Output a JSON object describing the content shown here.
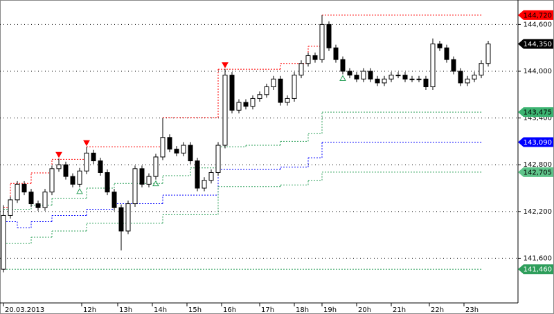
{
  "chart_data": {
    "type": "candlestick",
    "xlim": [
      -0.5,
      74.3
    ],
    "ylim": [
      141027,
      144914
    ],
    "xticks": [
      {
        "value": 0,
        "label": "20.03.2013"
      },
      {
        "value": 11.3,
        "label": "12h"
      },
      {
        "value": 16.5,
        "label": "13h"
      },
      {
        "value": 21.5,
        "label": "14h"
      },
      {
        "value": 26.5,
        "label": "15h"
      },
      {
        "value": 31.5,
        "label": "16h"
      },
      {
        "value": 37,
        "label": "17h"
      },
      {
        "value": 42,
        "label": "18h"
      },
      {
        "value": 46,
        "label": "19h"
      },
      {
        "value": 51,
        "label": "20h"
      },
      {
        "value": 56,
        "label": "21h"
      },
      {
        "value": 61.5,
        "label": "22h"
      },
      {
        "value": 66.5,
        "label": "23h"
      }
    ],
    "yticks": [
      {
        "value": 141600,
        "label": "141,600"
      },
      {
        "value": 142200,
        "label": "142,200"
      },
      {
        "value": 142800,
        "label": "142,800"
      },
      {
        "value": 143400,
        "label": "143,400"
      },
      {
        "value": 144000,
        "label": "144,000"
      },
      {
        "value": 144600,
        "label": "144,600"
      }
    ],
    "grid": true,
    "up_color": "#ffffff",
    "down_color": "#000000",
    "open": [
      141460,
      142150,
      142350,
      142550,
      142450,
      142300,
      142250,
      142450,
      142750,
      142800,
      142650,
      142550,
      142720,
      142950,
      142850,
      142700,
      142450,
      142250,
      141950,
      142300,
      142750,
      142550,
      142650,
      142900,
      143150,
      143000,
      142950,
      143050,
      142850,
      142500,
      142600,
      142700,
      143050,
      143950,
      143500,
      143600,
      143550,
      143650,
      143700,
      143800,
      143900,
      143600,
      143650,
      143950,
      144100,
      144200,
      144150,
      144600,
      144300,
      144150,
      144000,
      143950,
      143900,
      144000,
      143900,
      143850,
      143900,
      143950,
      143950,
      143900,
      143900,
      143900,
      143800,
      144350,
      144300,
      144150,
      144000,
      143850,
      143900,
      143950,
      144100
    ],
    "high": [
      142280,
      142390,
      142590,
      142590,
      142490,
      142340,
      142490,
      142790,
      142880,
      142840,
      142690,
      142760,
      143030,
      142990,
      142890,
      142740,
      142490,
      142290,
      142340,
      142790,
      142790,
      142690,
      142940,
      143400,
      143190,
      143040,
      143090,
      143090,
      142890,
      142640,
      142740,
      143090,
      144030,
      143990,
      143640,
      143640,
      143690,
      143740,
      143840,
      143940,
      143940,
      143690,
      143990,
      144140,
      144240,
      144240,
      144720,
      144640,
      144340,
      144190,
      144040,
      143990,
      144040,
      144040,
      143940,
      143940,
      143990,
      143990,
      143990,
      143940,
      143940,
      143940,
      144420,
      144390,
      144340,
      144190,
      144040,
      143940,
      143990,
      144140,
      144390
    ],
    "low": [
      141420,
      142110,
      142310,
      142410,
      142260,
      142210,
      142210,
      142410,
      142710,
      142610,
      142510,
      142510,
      142680,
      142810,
      142660,
      142410,
      142210,
      141700,
      141910,
      142260,
      142510,
      142510,
      142610,
      142860,
      142960,
      142910,
      142910,
      142810,
      142460,
      142460,
      142560,
      142660,
      143010,
      143460,
      143460,
      143510,
      143510,
      143610,
      143660,
      143760,
      143560,
      143560,
      143610,
      143910,
      144060,
      144110,
      144110,
      144260,
      144110,
      143960,
      143910,
      143860,
      143860,
      143860,
      143810,
      143810,
      143860,
      143910,
      143860,
      143860,
      143860,
      143760,
      143760,
      144260,
      144110,
      143960,
      143810,
      143810,
      143860,
      143910,
      144060
    ],
    "close": [
      142150,
      142350,
      142550,
      142450,
      142300,
      142250,
      142450,
      142750,
      142800,
      142650,
      142550,
      142720,
      142950,
      142850,
      142700,
      142450,
      142250,
      141950,
      142300,
      142750,
      142550,
      142650,
      142900,
      143150,
      143000,
      142950,
      143050,
      142850,
      142500,
      142600,
      142700,
      143050,
      143950,
      143500,
      143600,
      143550,
      143650,
      143700,
      143800,
      143900,
      143600,
      143650,
      143950,
      144100,
      144200,
      144150,
      144600,
      144300,
      144150,
      144000,
      143950,
      143900,
      144000,
      143900,
      143850,
      143900,
      143950,
      143950,
      143900,
      143900,
      143900,
      143800,
      144350,
      144300,
      144150,
      144000,
      143850,
      143900,
      143950,
      144100,
      144350
    ],
    "steps": [
      {
        "color": "#ff0000",
        "x": [
          0,
          1,
          4,
          7,
          12,
          23,
          31,
          40,
          44,
          46,
          69
        ],
        "values": [
          142250,
          142560,
          142695,
          142870,
          143030,
          143405,
          144025,
          144100,
          144320,
          144720,
          144720
        ]
      },
      {
        "color": "#0000ff",
        "x": [
          0,
          2,
          4,
          7,
          12,
          16,
          23,
          31,
          40,
          44,
          46,
          69
        ],
        "values": [
          142070,
          141990,
          142070,
          142150,
          142230,
          142300,
          142410,
          142740,
          142770,
          142890,
          143090,
          143090
        ]
      },
      {
        "color": "#2ca05a",
        "x": [
          0,
          4,
          7,
          12,
          16,
          23,
          27,
          31,
          35,
          40,
          44,
          46,
          69
        ],
        "values": [
          142230,
          142280,
          142370,
          142500,
          142560,
          142660,
          142760,
          143030,
          143050,
          143100,
          143200,
          143475,
          143475
        ]
      },
      {
        "color": "#2ca05a",
        "x": [
          0,
          4,
          7,
          12,
          23,
          31,
          40,
          44,
          46,
          69
        ],
        "values": [
          141790,
          141870,
          141950,
          142050,
          142160,
          142520,
          142540,
          142600,
          142705,
          142705
        ]
      },
      {
        "color": "#2ca05a",
        "x": [
          0,
          69
        ],
        "values": [
          141460,
          141460
        ]
      }
    ],
    "down_markers": {
      "color": "#ff0000",
      "x": [
        8,
        12,
        32
      ],
      "values": [
        142880,
        143030,
        144030
      ]
    },
    "up_markers": {
      "color": "#2ca05a",
      "x": [
        11,
        22,
        49
      ],
      "values": [
        142510,
        142610,
        143960
      ]
    },
    "levels": [
      {
        "value": 144720,
        "label": "144,720",
        "color": "#ff0000",
        "text_color": "#000000"
      },
      {
        "value": 144350,
        "label": "144,350",
        "color": "#000000",
        "text_color": "#ffffff"
      },
      {
        "value": 143475,
        "label": "143,475",
        "color": "#3cb371",
        "text_color": "#000000"
      },
      {
        "value": 143090,
        "label": "143,090",
        "color": "#0000ff",
        "text_color": "#ffffff"
      },
      {
        "value": 142705,
        "label": "142,705",
        "color": "#5fc48a",
        "text_color": "#000000"
      },
      {
        "value": 141460,
        "label": "141,460",
        "color": "#2e9e5b",
        "text_color": "#ffffff"
      }
    ]
  }
}
